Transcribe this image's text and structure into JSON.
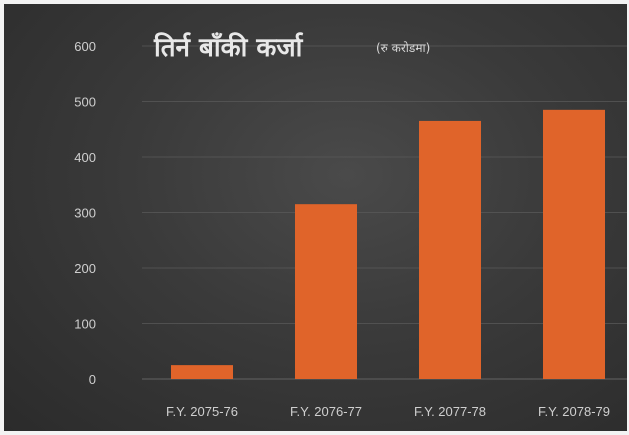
{
  "chart_data": {
    "type": "bar",
    "title": "तिर्न बाँकी कर्जा",
    "subtitle": "(रु करोडमा)",
    "categories": [
      "F.Y. 2075-76",
      "F.Y. 2076-77",
      "F.Y. 2077-78",
      "F.Y. 2078-79"
    ],
    "values": [
      25,
      315,
      465,
      485
    ],
    "y_ticks": [
      "0",
      "100",
      "200",
      "300",
      "400",
      "500",
      "600"
    ],
    "ylim": [
      0,
      600
    ],
    "grid": true,
    "colors": {
      "bar": "#e0642a",
      "grid": "#5a5a5a",
      "background": "#3a3a3a"
    }
  }
}
